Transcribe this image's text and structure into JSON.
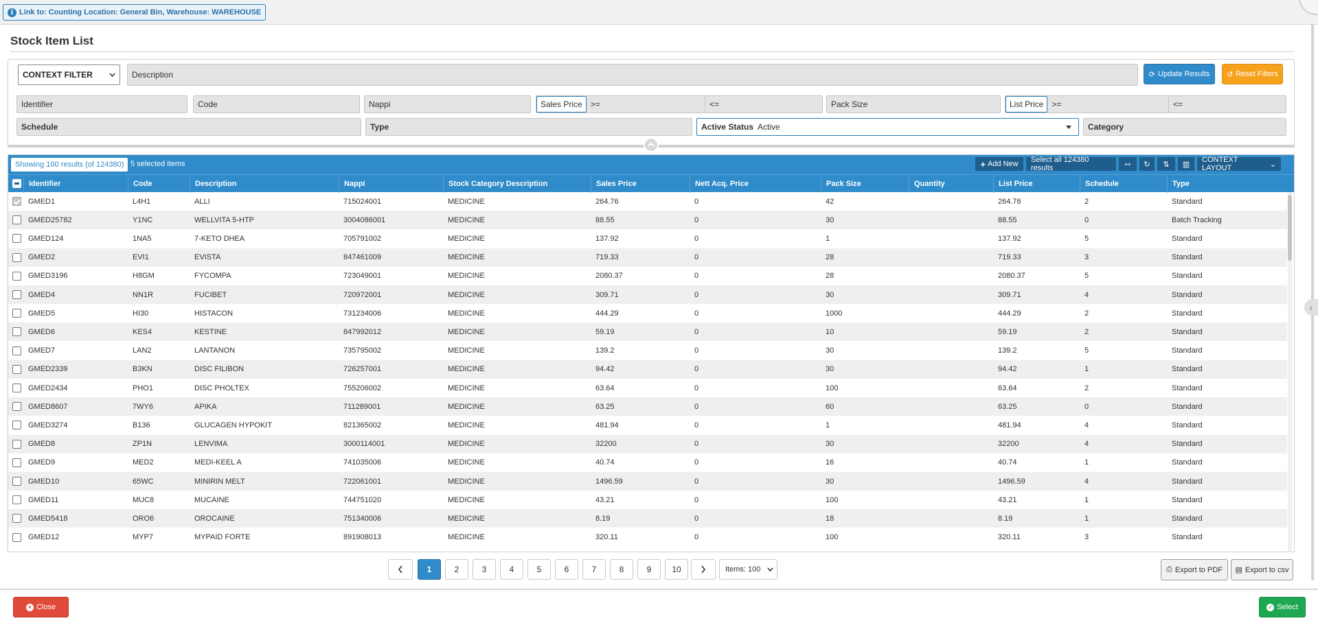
{
  "link_chip": "Link to: Counting Location: General Bin, Warehouse: WAREHOUSE",
  "page_title": "Stock Item List",
  "filters": {
    "context_filter": "CONTEXT FILTER",
    "description": "Description",
    "update_results": "Update Results",
    "reset_filters": "Reset Filters",
    "identifier": "Identifier",
    "code": "Code",
    "nappi": "Nappi",
    "sales_price": "Sales Price",
    "gte": ">=",
    "lte": "<=",
    "pack_size": "Pack Size",
    "list_price": "List Price",
    "schedule": "Schedule",
    "type": "Type",
    "active_status_label": "Active Status",
    "active_status_value": "Active",
    "category": "Category"
  },
  "grid_toolbar": {
    "showing": "Showing 100 results (of 124380)",
    "selected": "5 selected items",
    "add_new": "Add New",
    "select_all": "Select all 124380 results",
    "context_layout": "CONTEXT LAYOUT"
  },
  "columns": [
    "Identifier",
    "Code",
    "Description",
    "Nappi",
    "Stock Category Description",
    "Sales Price",
    "Nett Acq. Price",
    "Pack Size",
    "Quantity",
    "List Price",
    "Schedule",
    "Type"
  ],
  "rows": [
    {
      "checked": true,
      "cells": [
        "GMED1",
        "L4H1",
        "ALLI",
        "715024001",
        "MEDICINE",
        "264.76",
        "0",
        "42",
        "",
        "264.76",
        "2",
        "Standard"
      ]
    },
    {
      "checked": false,
      "cells": [
        "GMED25782",
        "Y1NC",
        "WELLVITA 5-HTP",
        "3004086001",
        "MEDICINE",
        "88.55",
        "0",
        "30",
        "",
        "88.55",
        "0",
        "Batch Tracking"
      ]
    },
    {
      "checked": false,
      "cells": [
        "GMED124",
        "1NA5",
        "7-KETO DHEA",
        "705791002",
        "MEDICINE",
        "137.92",
        "0",
        "1",
        "",
        "137.92",
        "5",
        "Standard"
      ]
    },
    {
      "checked": false,
      "cells": [
        "GMED2",
        "EVI1",
        "EVISTA",
        "847461009",
        "MEDICINE",
        "719.33",
        "0",
        "28",
        "",
        "719.33",
        "3",
        "Standard"
      ]
    },
    {
      "checked": false,
      "cells": [
        "GMED3196",
        "H8GM",
        "FYCOMPA",
        "723049001",
        "MEDICINE",
        "2080.37",
        "0",
        "28",
        "",
        "2080.37",
        "5",
        "Standard"
      ]
    },
    {
      "checked": false,
      "cells": [
        "GMED4",
        "NN1R",
        "FUCIBET",
        "720972001",
        "MEDICINE",
        "309.71",
        "0",
        "30",
        "",
        "309.71",
        "4",
        "Standard"
      ]
    },
    {
      "checked": false,
      "cells": [
        "GMED5",
        "HI30",
        "HISTACON",
        "731234006",
        "MEDICINE",
        "444.29",
        "0",
        "1000",
        "",
        "444.29",
        "2",
        "Standard"
      ]
    },
    {
      "checked": false,
      "cells": [
        "GMED6",
        "KES4",
        "KESTINE",
        "847992012",
        "MEDICINE",
        "59.19",
        "0",
        "10",
        "",
        "59.19",
        "2",
        "Standard"
      ]
    },
    {
      "checked": false,
      "cells": [
        "GMED7",
        "LAN2",
        "LANTANON",
        "735795002",
        "MEDICINE",
        "139.2",
        "0",
        "30",
        "",
        "139.2",
        "5",
        "Standard"
      ]
    },
    {
      "checked": false,
      "cells": [
        "GMED2339",
        "B3KN",
        "DISC FILIBON",
        "726257001",
        "MEDICINE",
        "94.42",
        "0",
        "30",
        "",
        "94.42",
        "1",
        "Standard"
      ]
    },
    {
      "checked": false,
      "cells": [
        "GMED2434",
        "PHO1",
        "DISC PHOLTEX",
        "755206002",
        "MEDICINE",
        "63.64",
        "0",
        "100",
        "",
        "63.64",
        "2",
        "Standard"
      ]
    },
    {
      "checked": false,
      "cells": [
        "GMED8607",
        "7WY6",
        "APIKA",
        "711289001",
        "MEDICINE",
        "63.25",
        "0",
        "60",
        "",
        "63.25",
        "0",
        "Standard"
      ]
    },
    {
      "checked": false,
      "cells": [
        "GMED3274",
        "B136",
        "GLUCAGEN HYPOKIT",
        "821365002",
        "MEDICINE",
        "481.94",
        "0",
        "1",
        "",
        "481.94",
        "4",
        "Standard"
      ]
    },
    {
      "checked": false,
      "cells": [
        "GMED8",
        "ZP1N",
        "LENVIMA",
        "3000114001",
        "MEDICINE",
        "32200",
        "0",
        "30",
        "",
        "32200",
        "4",
        "Standard"
      ]
    },
    {
      "checked": false,
      "cells": [
        "GMED9",
        "MED2",
        "MEDI-KEEL A",
        "741035006",
        "MEDICINE",
        "40.74",
        "0",
        "16",
        "",
        "40.74",
        "1",
        "Standard"
      ]
    },
    {
      "checked": false,
      "cells": [
        "GMED10",
        "65WC",
        "MINIRIN MELT",
        "722061001",
        "MEDICINE",
        "1496.59",
        "0",
        "30",
        "",
        "1496.59",
        "4",
        "Standard"
      ]
    },
    {
      "checked": false,
      "cells": [
        "GMED11",
        "MUC8",
        "MUCAINE",
        "744751020",
        "MEDICINE",
        "43.21",
        "0",
        "100",
        "",
        "43.21",
        "1",
        "Standard"
      ]
    },
    {
      "checked": false,
      "cells": [
        "GMED5418",
        "ORO6",
        "OROCAINE",
        "751340006",
        "MEDICINE",
        "8.19",
        "0",
        "18",
        "",
        "8.19",
        "1",
        "Standard"
      ]
    },
    {
      "checked": false,
      "cells": [
        "GMED12",
        "MYP7",
        "MYPAID FORTE",
        "891908013",
        "MEDICINE",
        "320.11",
        "0",
        "100",
        "",
        "320.11",
        "3",
        "Standard"
      ]
    }
  ],
  "pagination": {
    "pages": [
      "1",
      "2",
      "3",
      "4",
      "5",
      "6",
      "7",
      "8",
      "9",
      "10"
    ],
    "current": "1",
    "items": "Items: 100"
  },
  "export": {
    "pdf": "Export to PDF",
    "csv": "Export to csv"
  },
  "footer": {
    "close": "Close",
    "select": "Select"
  },
  "colors": {
    "primary": "#2f8bc9",
    "orange": "#f7a21c",
    "danger": "#e04a3a",
    "success": "#1ea851"
  }
}
